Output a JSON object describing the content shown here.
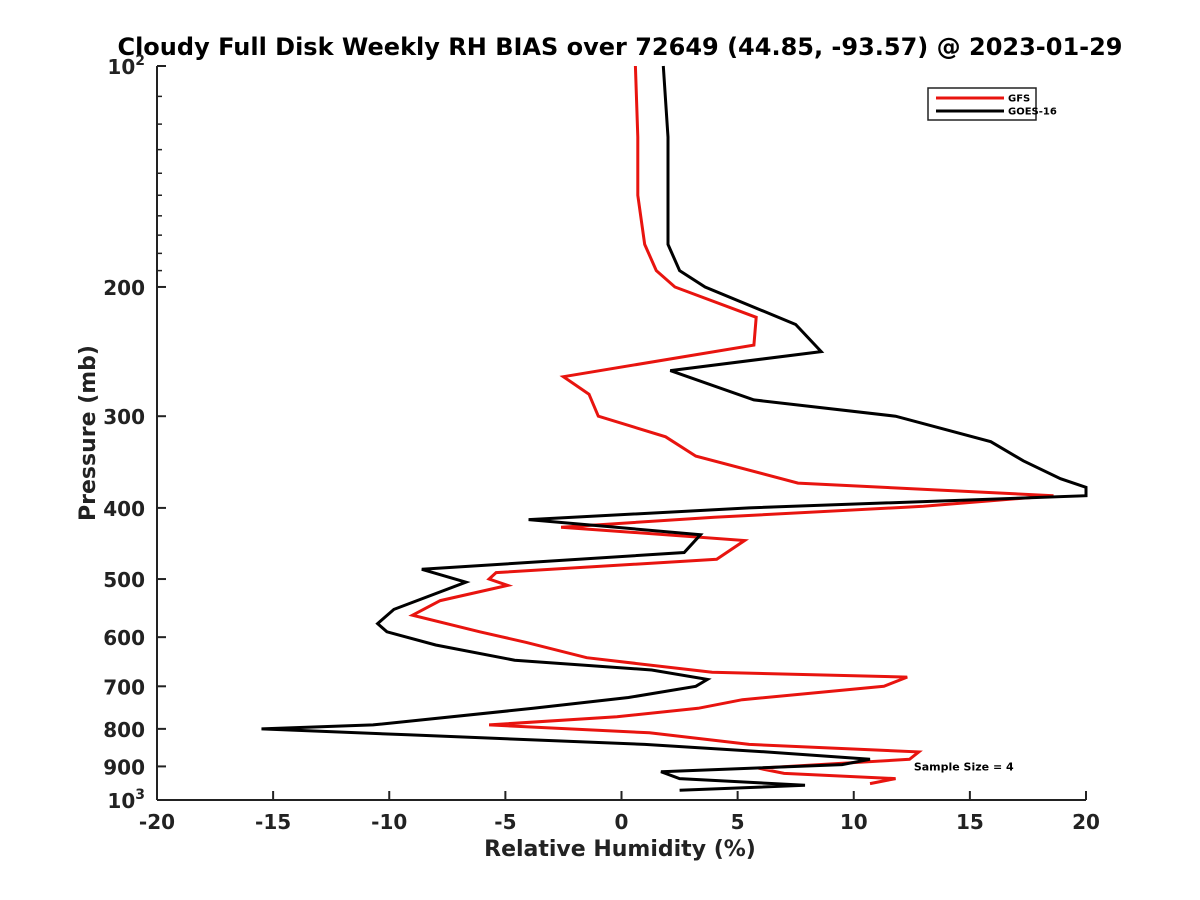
{
  "chart_data": {
    "type": "line",
    "title": "Cloudy Full Disk Weekly RH BIAS over 72649 (44.85, -93.57) @ 2023-01-29",
    "xlabel": "Relative Humidity (%)",
    "ylabel": "Pressure (mb)",
    "xlim": [
      -20,
      20
    ],
    "ylim": [
      100,
      1000
    ],
    "y_scale": "log",
    "y_reversed": true,
    "grid": false,
    "legend_position": "top-right",
    "x_ticks": [
      -20,
      -15,
      -10,
      -5,
      0,
      5,
      10,
      15,
      20
    ],
    "x_tick_labels": [
      "-20",
      "-15",
      "-10",
      "-5",
      "0",
      "5",
      "10",
      "15",
      "20"
    ],
    "y_ticks": [
      {
        "value": 100,
        "base": "10",
        "exp": "2"
      },
      {
        "value": 200,
        "base": "200",
        "exp": ""
      },
      {
        "value": 300,
        "base": "300",
        "exp": ""
      },
      {
        "value": 400,
        "base": "400",
        "exp": ""
      },
      {
        "value": 500,
        "base": "500",
        "exp": ""
      },
      {
        "value": 600,
        "base": "600",
        "exp": ""
      },
      {
        "value": 700,
        "base": "700",
        "exp": ""
      },
      {
        "value": 800,
        "base": "800",
        "exp": ""
      },
      {
        "value": 900,
        "base": "900",
        "exp": ""
      },
      {
        "value": 1000,
        "base": "10",
        "exp": "3"
      }
    ],
    "series": [
      {
        "name": "GFS",
        "color": "#e8140f",
        "points": [
          [
            0.6,
            100
          ],
          [
            0.7,
            125
          ],
          [
            0.7,
            150
          ],
          [
            1.0,
            175
          ],
          [
            1.5,
            190
          ],
          [
            2.3,
            200
          ],
          [
            5.8,
            220
          ],
          [
            5.7,
            240
          ],
          [
            -2.5,
            265
          ],
          [
            -1.4,
            280
          ],
          [
            -1.0,
            300
          ],
          [
            1.9,
            320
          ],
          [
            3.2,
            340
          ],
          [
            7.6,
            370
          ],
          [
            18.6,
            385
          ],
          [
            13.0,
            398
          ],
          [
            4.0,
            412
          ],
          [
            -2.6,
            425
          ],
          [
            5.3,
            443
          ],
          [
            4.1,
            470
          ],
          [
            -5.4,
            490
          ],
          [
            -5.7,
            500
          ],
          [
            -4.9,
            510
          ],
          [
            -7.8,
            535
          ],
          [
            -9.0,
            560
          ],
          [
            -6.1,
            590
          ],
          [
            -4.1,
            610
          ],
          [
            -1.5,
            640
          ],
          [
            3.9,
            670
          ],
          [
            12.3,
            680
          ],
          [
            11.3,
            700
          ],
          [
            5.2,
            730
          ],
          [
            3.3,
            750
          ],
          [
            -0.2,
            770
          ],
          [
            -5.7,
            790
          ],
          [
            1.2,
            810
          ],
          [
            5.5,
            840
          ],
          [
            12.8,
            860
          ],
          [
            12.4,
            880
          ],
          [
            5.9,
            905
          ],
          [
            7.0,
            920
          ],
          [
            11.8,
            935
          ],
          [
            10.7,
            950
          ]
        ]
      },
      {
        "name": "GOES-16",
        "color": "#000000",
        "points": [
          [
            1.8,
            100
          ],
          [
            2.0,
            125
          ],
          [
            2.0,
            150
          ],
          [
            2.0,
            175
          ],
          [
            2.5,
            190
          ],
          [
            3.6,
            200
          ],
          [
            7.5,
            225
          ],
          [
            8.6,
            245
          ],
          [
            2.1,
            260
          ],
          [
            5.7,
            285
          ],
          [
            11.8,
            300
          ],
          [
            15.9,
            325
          ],
          [
            17.3,
            345
          ],
          [
            18.9,
            365
          ],
          [
            20.0,
            375
          ],
          [
            20.0,
            385
          ],
          [
            5.5,
            400
          ],
          [
            -4.0,
            415
          ],
          [
            3.4,
            435
          ],
          [
            2.7,
            460
          ],
          [
            -8.6,
            485
          ],
          [
            -6.7,
            505
          ],
          [
            -9.8,
            550
          ],
          [
            -10.5,
            575
          ],
          [
            -10.1,
            590
          ],
          [
            -8.0,
            615
          ],
          [
            -4.6,
            645
          ],
          [
            1.3,
            665
          ],
          [
            3.7,
            685
          ],
          [
            3.2,
            700
          ],
          [
            0.3,
            725
          ],
          [
            -3.8,
            750
          ],
          [
            -10.7,
            790
          ],
          [
            -15.5,
            800
          ],
          [
            -9.2,
            815
          ],
          [
            1.0,
            840
          ],
          [
            6.2,
            860
          ],
          [
            10.7,
            880
          ],
          [
            9.5,
            895
          ],
          [
            1.7,
            915
          ],
          [
            2.5,
            935
          ],
          [
            7.9,
            955
          ],
          [
            2.5,
            970
          ]
        ]
      }
    ],
    "annotations": [
      {
        "text": "Sample Size = 4",
        "x": 12.5,
        "y": 900
      }
    ]
  }
}
